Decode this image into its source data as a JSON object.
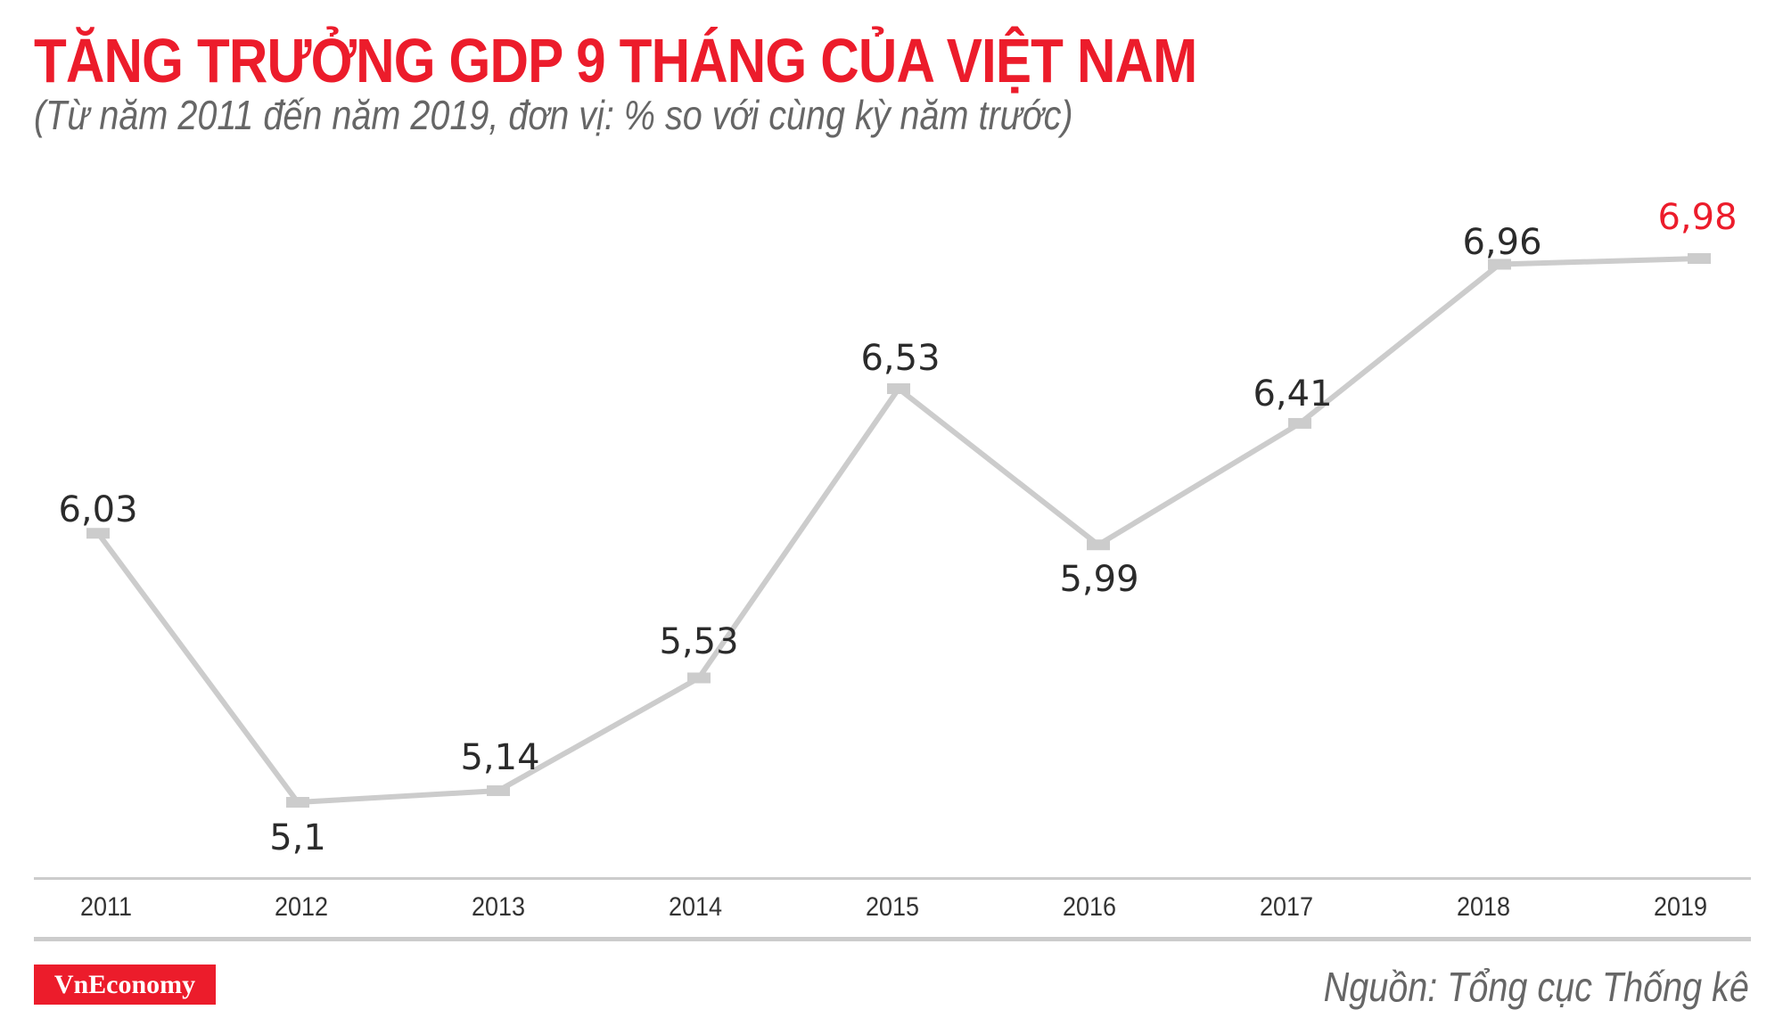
{
  "header": {
    "title": "TĂNG TRƯỞNG GDP 9 THÁNG CỦA VIỆT NAM",
    "subtitle": "(Từ năm 2011 đến năm 2019, đơn vị: % so với cùng kỳ năm trước)"
  },
  "footer": {
    "logo": "VnEconomy",
    "source": "Nguồn: Tổng cục Thống kê"
  },
  "colors": {
    "accent": "#ec1c2b",
    "line": "#cccccc",
    "label": "#2b2b2b",
    "subtitle": "#666666"
  },
  "chart_data": {
    "type": "line",
    "title": "TĂNG TRƯỞNG GDP 9 THÁNG CỦA VIỆT NAM",
    "subtitle": "(Từ năm 2011 đến năm 2019, đơn vị: % so với cùng kỳ năm trước)",
    "xlabel": "",
    "ylabel": "% so với cùng kỳ năm trước",
    "categories": [
      "2011",
      "2012",
      "2013",
      "2014",
      "2015",
      "2016",
      "2017",
      "2018",
      "2019"
    ],
    "series": [
      {
        "name": "Tăng trưởng GDP 9 tháng",
        "values": [
          6.03,
          5.1,
          5.14,
          5.53,
          6.53,
          5.99,
          6.41,
          6.96,
          6.98
        ]
      }
    ],
    "data_labels": [
      "6,03",
      "5,1",
      "5,14",
      "5,53",
      "6,53",
      "5,99",
      "6,41",
      "6,96",
      "6,98"
    ],
    "highlight_index": 8,
    "grid": false,
    "legend": "none",
    "source": "Nguồn: Tổng cục Thống kê"
  }
}
